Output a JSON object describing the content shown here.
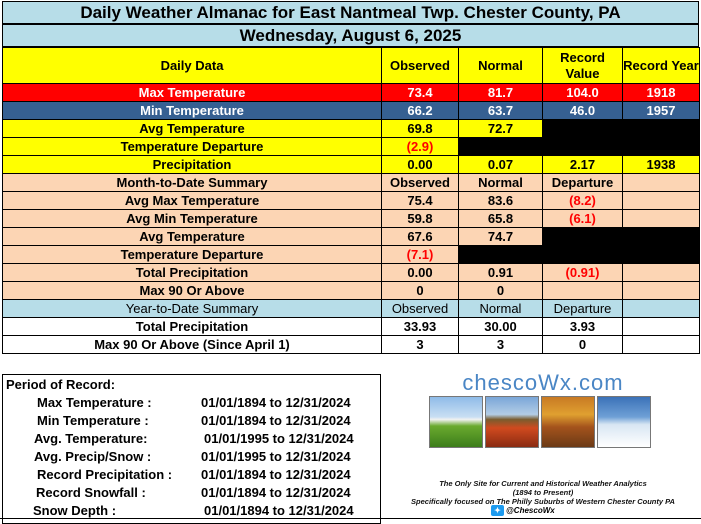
{
  "header": {
    "title": "Daily Weather Almanac for East Nantmeal Twp.  Chester County, PA",
    "date": "Wednesday, August 6, 2025"
  },
  "daily": {
    "col_label": "Daily Data",
    "col_observed": "Observed",
    "col_normal": "Normal",
    "col_record_value": "Record Value",
    "col_record_year": "Record Year",
    "rows": [
      {
        "label": "Max Temperature",
        "observed": "73.4",
        "normal": "81.7",
        "record": "104.0",
        "year": "1918"
      },
      {
        "label": "Min Temperature",
        "observed": "66.2",
        "normal": "63.7",
        "record": "46.0",
        "year": "1957"
      },
      {
        "label": "Avg Temperature",
        "observed": "69.8",
        "normal": "72.7"
      },
      {
        "label": "Temperature Departure",
        "observed": "(2.9)"
      },
      {
        "label": "Precipitation",
        "observed": "0.00",
        "normal": "0.07",
        "record": "2.17",
        "year": "1938"
      }
    ]
  },
  "mtd": {
    "title": "Month-to-Date Summary",
    "col_observed": "Observed",
    "col_normal": "Normal",
    "col_departure": "Departure",
    "rows": [
      {
        "label": "Avg Max Temperature",
        "observed": "75.4",
        "normal": "83.6",
        "departure": "(8.2)"
      },
      {
        "label": "Avg Min Temperature",
        "observed": "59.8",
        "normal": "65.8",
        "departure": "(6.1)"
      },
      {
        "label": "Avg Temperature",
        "observed": "67.6",
        "normal": "74.7"
      },
      {
        "label": "Temperature Departure",
        "observed": "(7.1)"
      },
      {
        "label": "Total Precipitation",
        "observed": "0.00",
        "normal": "0.91",
        "departure": "(0.91)"
      },
      {
        "label": "Max 90 Or Above",
        "observed": "0",
        "normal": "0"
      }
    ]
  },
  "ytd": {
    "title": "Year-to-Date Summary",
    "col_observed": "Observed",
    "col_normal": "Normal",
    "col_departure": "Departure",
    "rows": [
      {
        "label": "Total Precipitation",
        "observed": "33.93",
        "normal": "30.00",
        "departure": "3.93"
      },
      {
        "label": "Max 90 Or Above (Since April 1)",
        "observed": "3",
        "normal": "3",
        "departure": "0"
      }
    ]
  },
  "period_of_record": {
    "title": "Period of Record:",
    "rows": [
      {
        "label": "Max Temperature :",
        "range": "01/01/1894 to 12/31/2024"
      },
      {
        "label": "Min Temperature :",
        "range": "01/01/1894 to 12/31/2024"
      },
      {
        "label": "Avg. Temperature:",
        "range": "01/01/1995 to 12/31/2024"
      },
      {
        "label": "Avg. Precip/Snow :",
        "range": "01/01/1995 to 12/31/2024"
      },
      {
        "label": "Record Precipitation :",
        "range": "01/01/1894 to 12/31/2024"
      },
      {
        "label": "Record Snowfall :",
        "range": "01/01/1894 to 12/31/2024"
      },
      {
        "label": "Snow Depth :",
        "range": "01/01/1894 to 12/31/2024"
      }
    ]
  },
  "logo": {
    "title": "chescoWx.com",
    "line1": "The Only Site for Current and Historical Weather Analytics",
    "line2": "(1894 to Present)",
    "line3": "Specifically focused on The Philly Suburbs of Western Chester County PA",
    "twitter": "@ChescoWx",
    "twitter_icon": "twitter-bird-icon"
  },
  "colors": {
    "header_blue": "#b7dde8",
    "yellow": "#ffff00",
    "max_red": "#ff0000",
    "min_blue": "#366092",
    "peach": "#fcd5b4",
    "negative_red": "#ff0000"
  }
}
